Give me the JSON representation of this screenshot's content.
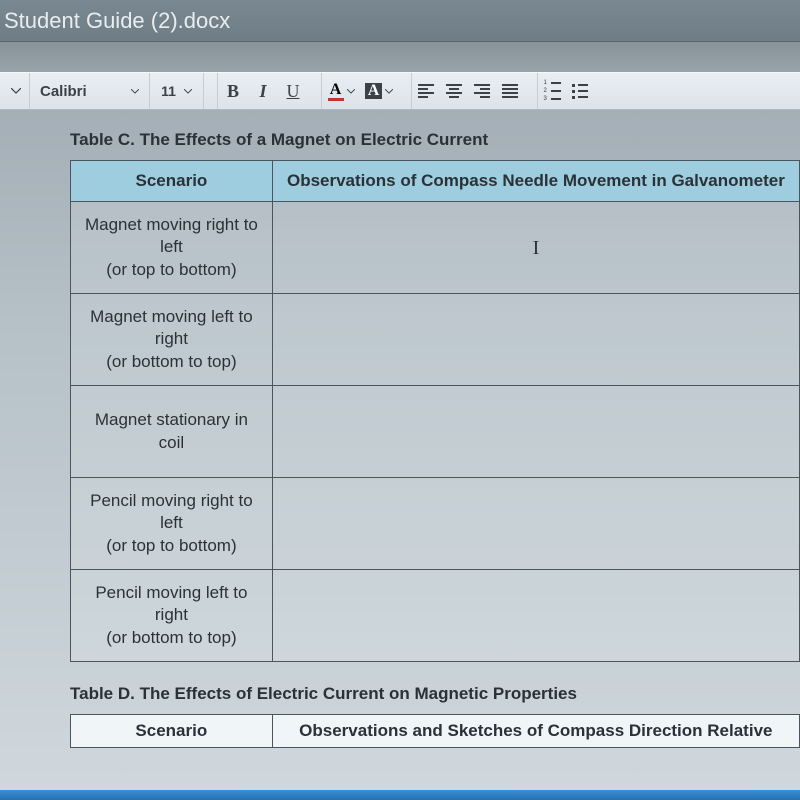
{
  "window": {
    "title": "Student Guide (2).docx"
  },
  "toolbar": {
    "font_name": "Calibri",
    "font_size": "11",
    "bold": "B",
    "italic": "I",
    "underline": "U",
    "font_color_char": "A",
    "font_color_bar": "#c0392b",
    "highlight_char": "A",
    "highlight_bar": "#3a4248"
  },
  "tableC": {
    "title": "Table C. The Effects of a Magnet on Electric Current",
    "headers": {
      "scenario": "Scenario",
      "observations": "Observations of Compass Needle Movement in Galvanometer"
    },
    "rows": [
      {
        "scenario": "Magnet moving right to left\n(or top to bottom)",
        "obs": ""
      },
      {
        "scenario": "Magnet moving left to right\n(or bottom to top)",
        "obs": ""
      },
      {
        "scenario": "Magnet stationary in coil",
        "obs": ""
      },
      {
        "scenario": "Pencil moving right to left\n(or top to bottom)",
        "obs": ""
      },
      {
        "scenario": "Pencil moving left to right\n(or bottom to top)",
        "obs": ""
      }
    ]
  },
  "tableD": {
    "title": "Table D. The Effects of Electric Current on Magnetic Properties",
    "headers": {
      "scenario": "Scenario",
      "observations": "Observations and Sketches of Compass Direction Relative"
    }
  }
}
